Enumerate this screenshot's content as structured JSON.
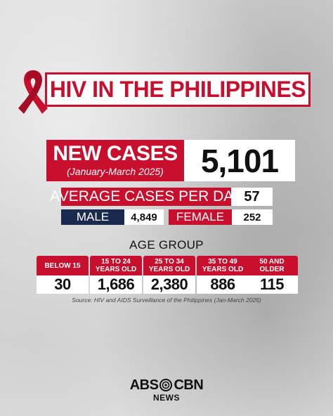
{
  "title": "HIV IN THE PHILIPPINES",
  "new_cases": {
    "label": "NEW CASES",
    "period": "(January-March 2025)",
    "value": "5,101"
  },
  "average_per_day": {
    "label": "AVERAGE CASES PER DAY",
    "value": "57"
  },
  "sex": {
    "male_label": "MALE",
    "male_value": "4,849",
    "female_label": "FEMALE",
    "female_value": "252"
  },
  "age_group": {
    "heading": "AGE GROUP",
    "groups": [
      {
        "label": "BELOW 15",
        "value": "30"
      },
      {
        "label": "15 TO 24 YEARS OLD",
        "value": "1,686"
      },
      {
        "label": "25 TO 34 YEARS OLD",
        "value": "2,380"
      },
      {
        "label": "35 TO 49 YEARS OLD",
        "value": "886"
      },
      {
        "label": "50 AND OLDER",
        "value": "115"
      }
    ]
  },
  "source": "Source: HIV and AIDS Surveillance of the Philippines (Jan-March 2025)",
  "logo": {
    "left": "ABS",
    "right": "CBN",
    "sub": "NEWS"
  },
  "colors": {
    "red": "#c8102e",
    "navy": "#1a2a4f"
  },
  "icons": {
    "ribbon": "red-awareness-ribbon-icon",
    "logo_mark": "abs-cbn-logo-mark-icon"
  }
}
